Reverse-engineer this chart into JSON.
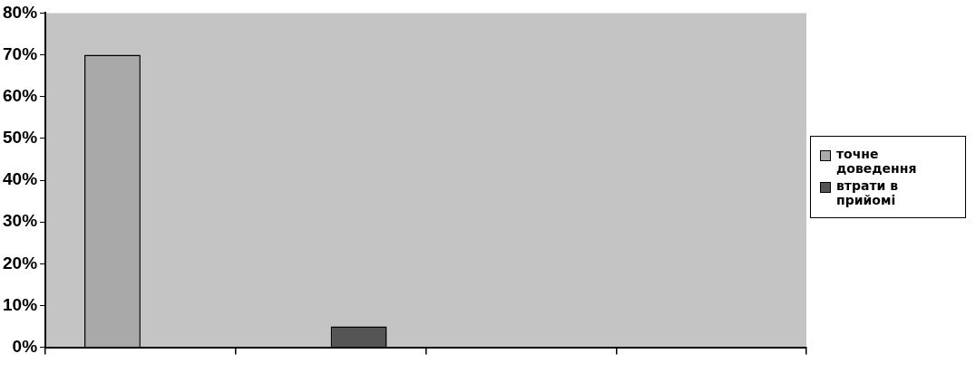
{
  "chart_data": {
    "type": "bar",
    "categories": [
      null,
      null,
      null,
      null
    ],
    "series": [
      {
        "name": "точне доведення",
        "color": "#a9a9a9",
        "values": [
          70,
          null,
          null,
          null
        ]
      },
      {
        "name": "втрати в прийомі",
        "color": "#555555",
        "values": [
          null,
          5,
          null,
          null
        ]
      }
    ],
    "ylim": [
      0,
      80
    ],
    "yticks": [
      {
        "value": 0,
        "label": "0%"
      },
      {
        "value": 10,
        "label": "10%"
      },
      {
        "value": 20,
        "label": "20%"
      },
      {
        "value": 30,
        "label": "30%"
      },
      {
        "value": 40,
        "label": "40%"
      },
      {
        "value": 50,
        "label": "50%"
      },
      {
        "value": 60,
        "label": "60%"
      },
      {
        "value": 70,
        "label": "70%"
      },
      {
        "value": 80,
        "label": "80%"
      }
    ],
    "grid": false,
    "legend": "right"
  }
}
